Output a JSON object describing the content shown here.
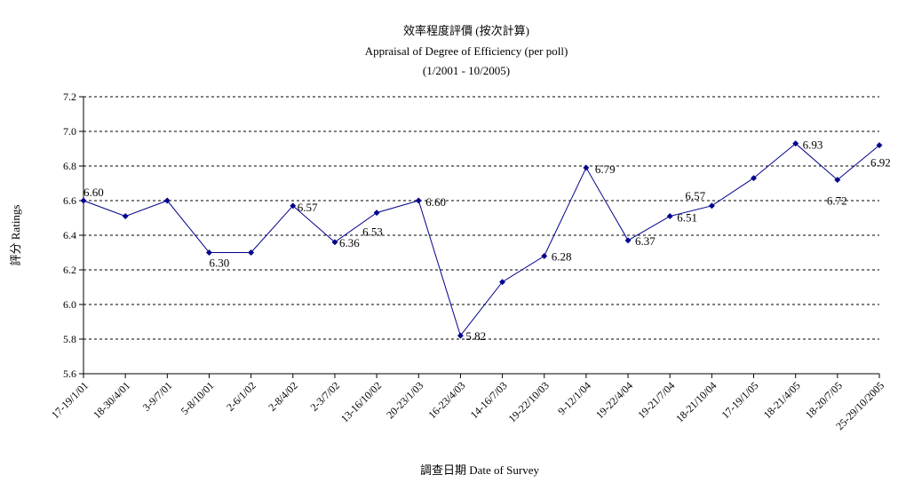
{
  "chart_data": {
    "type": "line",
    "title": "效率程度評價 (按次計算)",
    "subtitle": "Appraisal of Degree of Efficiency (per poll)",
    "period": "(1/2001 - 10/2005)",
    "xlabel": "調查日期 Date of Survey",
    "ylabel": "評分 Ratings",
    "ylim": [
      5.6,
      7.2
    ],
    "yticks": [
      "5.6",
      "5.8",
      "6.0",
      "6.2",
      "6.4",
      "6.6",
      "6.8",
      "7.0",
      "7.2"
    ],
    "grid": true,
    "legend": "none",
    "series_color": "#00008B",
    "categories": [
      "17-19/1/01",
      "18-30/4/01",
      "3-9/7/01",
      "5-8/10/01",
      "2-6/1/02",
      "2-8/4/02",
      "2-3/7/02",
      "13-16/10/02",
      "20-23/1/03",
      "16-23/4/03",
      "14-16/7/03",
      "19-22/10/03",
      "9-12/1/04",
      "19-22/4/04",
      "19-21/7/04",
      "18-21/10/04",
      "17-19/1/05",
      "18-21/4/05",
      "18-20/7/05",
      "25-29/10/2005"
    ],
    "values": [
      6.6,
      6.51,
      6.6,
      6.3,
      6.3,
      6.57,
      6.36,
      6.53,
      6.6,
      5.82,
      6.13,
      6.28,
      6.79,
      6.37,
      6.51,
      6.57,
      6.73,
      6.93,
      6.72,
      6.92
    ],
    "data_labels": [
      "6.60",
      "",
      "",
      "6.30",
      "",
      "6.57",
      "6.36",
      "6.53",
      "6.60",
      "5.82",
      "",
      "6.28",
      "6.79",
      "6.37",
      "6.51",
      "6.57",
      "",
      "6.93",
      "6.72",
      "6.92"
    ]
  }
}
